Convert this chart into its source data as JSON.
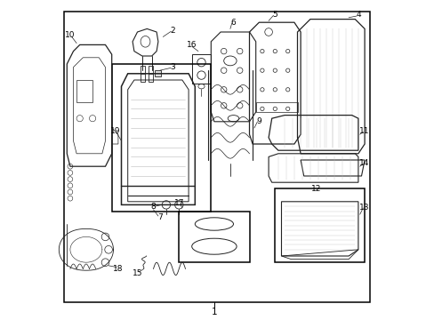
{
  "bg_color": "#ffffff",
  "border_color": "#000000",
  "line_color": "#222222",
  "gray_color": "#888888",
  "light_gray": "#bbbbbb",
  "fig_width": 4.89,
  "fig_height": 3.6,
  "dpi": 100,
  "fs": 6.5,
  "fs_main": 8,
  "lw_border": 1.1,
  "lw_main": 0.9,
  "lw_detail": 0.5
}
